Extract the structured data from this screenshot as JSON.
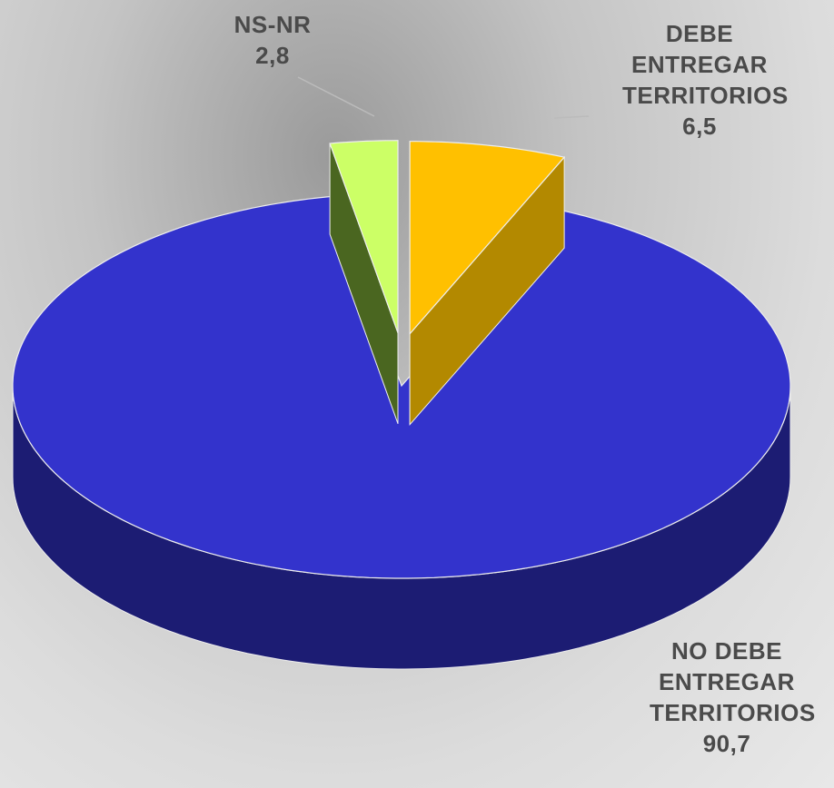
{
  "chart_data": {
    "type": "pie3d",
    "categories": [
      "DEBE ENTREGAR TERRITORIOS",
      "NO DEBE ENTREGAR TERRITORIOS",
      "NS-NR"
    ],
    "values": [
      6.5,
      90.7,
      2.8
    ],
    "value_labels": [
      "6,5",
      "90,7",
      "2,8"
    ],
    "colors": [
      "#ffc000",
      "#3333cc",
      "#ccff66"
    ],
    "side_colors": [
      "#b38900",
      "#1c1c73",
      "#4a6620"
    ],
    "exploded": [
      true,
      false,
      true
    ]
  }
}
